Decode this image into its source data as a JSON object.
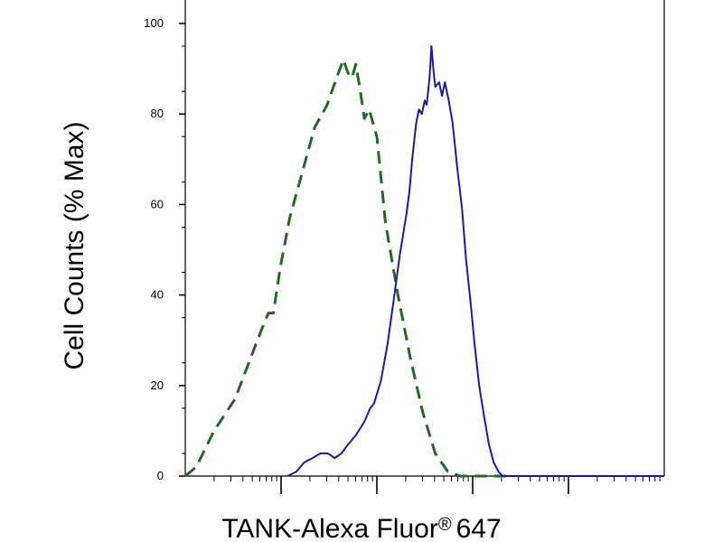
{
  "chart_data": {
    "type": "line",
    "xlabel": "TANK-Alexa Fluor",
    "xlabel_mark": "®",
    "xlabel_suffix": "647",
    "ylabel": "Cell Counts (% Max)",
    "x_scale": "log",
    "xlim": [
      1,
      100000
    ],
    "ylim": [
      0,
      100
    ],
    "yticks": [
      0,
      20,
      40,
      60,
      80,
      100
    ],
    "ytick_labels": [
      "0",
      "20",
      "40",
      "60",
      "80",
      "100"
    ],
    "xticks_major": [
      10,
      100,
      1000,
      10000
    ],
    "grid": false,
    "series": [
      {
        "style": "dashed",
        "color": "#1f6b1f",
        "points": [
          [
            1.0,
            0
          ],
          [
            1.3,
            2
          ],
          [
            2.0,
            10
          ],
          [
            3.3,
            17
          ],
          [
            5.0,
            27
          ],
          [
            6.7,
            34
          ],
          [
            7.4,
            36
          ],
          [
            8.3,
            36
          ],
          [
            9.8,
            46
          ],
          [
            12.3,
            57
          ],
          [
            16.6,
            67
          ],
          [
            22.4,
            77
          ],
          [
            30.2,
            82
          ],
          [
            38.0,
            88
          ],
          [
            44.7,
            92
          ],
          [
            50.1,
            89
          ],
          [
            55.0,
            88
          ],
          [
            60.3,
            91
          ],
          [
            66.1,
            86
          ],
          [
            74.1,
            79
          ],
          [
            83.2,
            81
          ],
          [
            100,
            75
          ],
          [
            123,
            56
          ],
          [
            166,
            40
          ],
          [
            224,
            26
          ],
          [
            302,
            14
          ],
          [
            407,
            5
          ],
          [
            550,
            1
          ],
          [
            740,
            0
          ],
          [
            1230,
            0
          ],
          [
            1660,
            0
          ],
          [
            2240,
            0
          ]
        ]
      },
      {
        "style": "solid",
        "color": "#1a1aaa",
        "points": [
          [
            11.7,
            0
          ],
          [
            14.5,
            1
          ],
          [
            17.4,
            3
          ],
          [
            21.4,
            4
          ],
          [
            25.7,
            5
          ],
          [
            30.9,
            5
          ],
          [
            36.3,
            4
          ],
          [
            42.7,
            5
          ],
          [
            50.1,
            7
          ],
          [
            60.3,
            9
          ],
          [
            74.1,
            12
          ],
          [
            85.1,
            15
          ],
          [
            93.3,
            16
          ],
          [
            110,
            21
          ],
          [
            129,
            29
          ],
          [
            148,
            38
          ],
          [
            174,
            49
          ],
          [
            204,
            58
          ],
          [
            219,
            63
          ],
          [
            234,
            70
          ],
          [
            257,
            78
          ],
          [
            275,
            81
          ],
          [
            295,
            80
          ],
          [
            316,
            83
          ],
          [
            331,
            82
          ],
          [
            355,
            88
          ],
          [
            371,
            95
          ],
          [
            389,
            90
          ],
          [
            407,
            86
          ],
          [
            447,
            87
          ],
          [
            479,
            84
          ],
          [
            513,
            87
          ],
          [
            562,
            83
          ],
          [
            617,
            78
          ],
          [
            691,
            68
          ],
          [
            776,
            59
          ],
          [
            851,
            48
          ],
          [
            955,
            38
          ],
          [
            1050,
            29
          ],
          [
            1170,
            20
          ],
          [
            1320,
            13
          ],
          [
            1480,
            7
          ],
          [
            1660,
            3
          ],
          [
            1860,
            1
          ],
          [
            2040,
            0
          ],
          [
            2510,
            0
          ],
          [
            3890,
            0
          ],
          [
            5890,
            0
          ],
          [
            10000,
            0
          ],
          [
            100000,
            0
          ]
        ]
      }
    ]
  }
}
